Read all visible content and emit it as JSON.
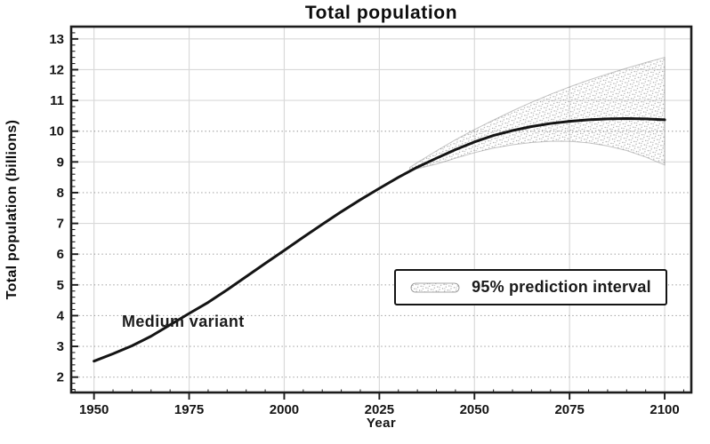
{
  "chart_data": {
    "type": "line",
    "title": "Total population",
    "xlabel": "Year",
    "ylabel": "Total population (billions)",
    "xlim": [
      1944,
      2107
    ],
    "ylim": [
      1.5,
      13.4
    ],
    "x_ticks": [
      1950,
      1975,
      2000,
      2025,
      2050,
      2075,
      2100
    ],
    "x_minor_step": 5,
    "y_ticks": [
      2,
      3,
      4,
      5,
      6,
      7,
      8,
      9,
      10,
      11,
      12,
      13
    ],
    "y_minor_step": 0.2,
    "grid": "on",
    "y_gridline_style": {
      "2": "dotted",
      "3": "dotted",
      "4": "dotted",
      "5": "dotted",
      "6": "dotted",
      "7": "solid",
      "8": "dotted",
      "9": "solid",
      "10": "dotted",
      "11": "solid",
      "12": "solid",
      "13": "solid"
    },
    "series": [
      {
        "name": "Medium variant",
        "x": [
          1950,
          1955,
          1960,
          1965,
          1970,
          1975,
          1980,
          1985,
          1990,
          1995,
          2000,
          2005,
          2010,
          2015,
          2020,
          2025,
          2030,
          2035,
          2040,
          2045,
          2050,
          2055,
          2060,
          2065,
          2070,
          2075,
          2080,
          2085,
          2090,
          2095,
          2100
        ],
        "y": [
          2.52,
          2.76,
          3.02,
          3.33,
          3.7,
          4.07,
          4.43,
          4.84,
          5.27,
          5.7,
          6.12,
          6.55,
          6.97,
          7.38,
          7.77,
          8.14,
          8.5,
          8.83,
          9.12,
          9.4,
          9.65,
          9.86,
          10.02,
          10.15,
          10.25,
          10.32,
          10.37,
          10.4,
          10.41,
          10.4,
          10.37
        ]
      }
    ],
    "band": {
      "name": "95% prediction interval",
      "x": [
        2033,
        2035,
        2040,
        2045,
        2050,
        2055,
        2060,
        2065,
        2070,
        2075,
        2080,
        2085,
        2090,
        2095,
        2100
      ],
      "upper": [
        8.82,
        8.98,
        9.36,
        9.72,
        10.05,
        10.36,
        10.66,
        10.94,
        11.2,
        11.44,
        11.66,
        11.86,
        12.05,
        12.23,
        12.4
      ],
      "lower": [
        8.76,
        8.78,
        8.93,
        9.12,
        9.3,
        9.45,
        9.56,
        9.63,
        9.67,
        9.67,
        9.62,
        9.52,
        9.37,
        9.16,
        8.9
      ]
    },
    "annotation": {
      "text": "Medium variant"
    },
    "legend": {
      "label": "95% prediction interval",
      "position": "inside-right-middle"
    },
    "colors": {
      "curve": "#141414",
      "frame": "#1c1c1c",
      "grid_solid": "#d9d9d9",
      "grid_dotted": "#a0a0a0",
      "band_stipple": "#8f8f8f",
      "tick_text": "#141414"
    }
  }
}
